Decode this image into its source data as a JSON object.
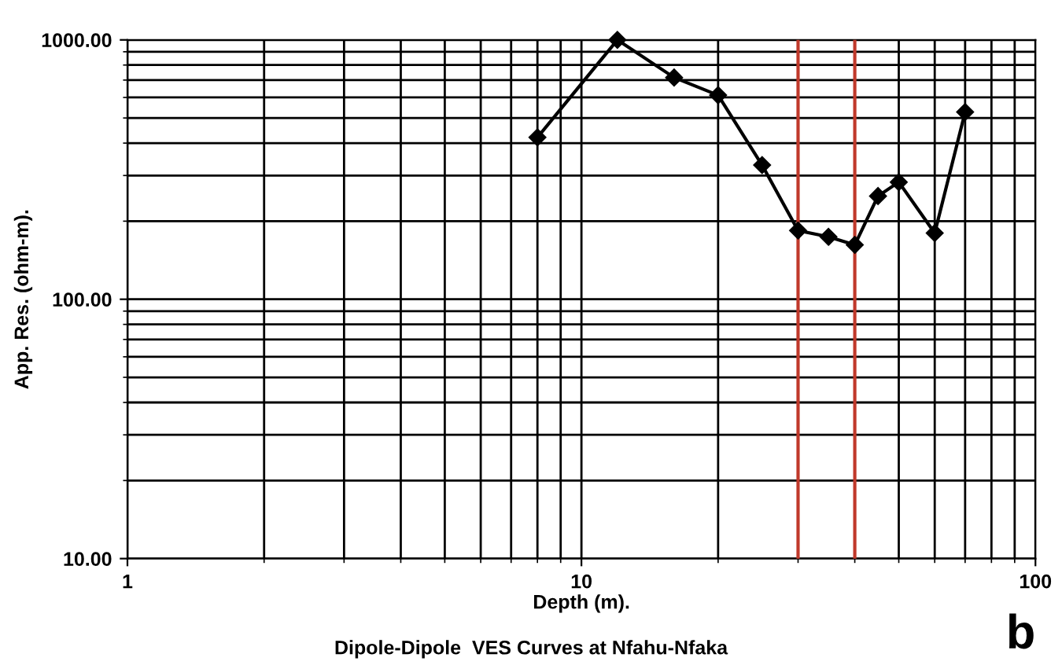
{
  "chart_data": {
    "type": "line",
    "title": "Dipole-Dipole  VES Curves at Nfahu-Nfaka",
    "xlabel": "Depth (m).",
    "ylabel": "App. Res. (ohm-m).",
    "x": [
      8,
      12,
      16,
      20,
      25,
      30,
      35,
      40,
      45,
      50,
      60,
      70
    ],
    "series": [
      {
        "color": "#000000",
        "values": [
          421,
          1000,
          716,
          612,
          329,
          184,
          174,
          162,
          250,
          283,
          180,
          527
        ]
      }
    ],
    "log": "xy",
    "xlim": [
      1,
      100
    ],
    "ylim": [
      10,
      1000
    ],
    "xticks": [
      1,
      10,
      100
    ],
    "yticks": [
      {
        "value": 10,
        "label": "10.00"
      },
      {
        "value": 100,
        "label": "100.00"
      },
      {
        "value": 1000,
        "label": "1000.00"
      }
    ],
    "grid": true,
    "marker": "diamond",
    "line_style": "solid",
    "ref_lines": [
      {
        "axis": "x",
        "value": 30,
        "color": "#c0392b"
      },
      {
        "axis": "x",
        "value": 40,
        "color": "#c0392b"
      }
    ],
    "annotations": [
      "b"
    ]
  }
}
